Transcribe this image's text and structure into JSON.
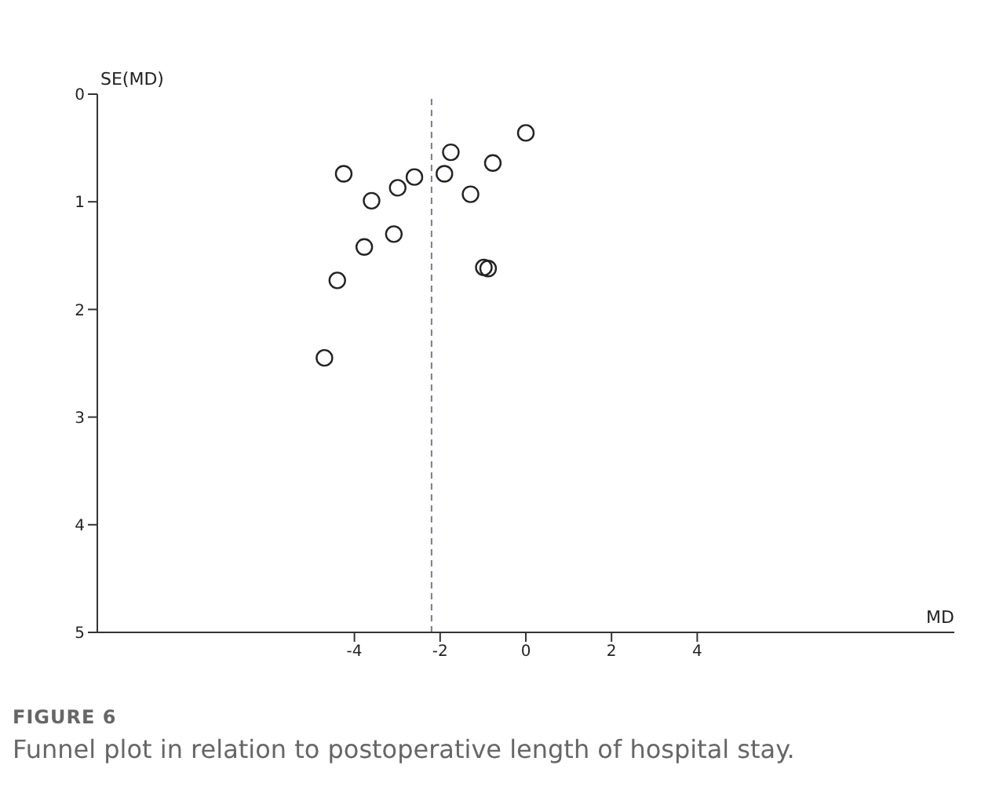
{
  "chart_data": {
    "type": "scatter",
    "xlabel": "MD",
    "ylabel": "SE(MD)",
    "annotations": [
      "FIGURE 6",
      "Funnel plot in relation to postoperative length of hospital stay."
    ],
    "x": [
      -4.25,
      -3.6,
      -2.99,
      -2.6,
      -1.75,
      -1.9,
      -0.77,
      0.0,
      -1.29,
      -3.08,
      -3.77,
      -4.4,
      -4.7,
      -0.98,
      -0.88
    ],
    "series": [
      {
        "color": "#222222",
        "values": [
          0.74,
          0.99,
          0.87,
          0.77,
          0.54,
          0.74,
          0.64,
          0.36,
          0.93,
          1.3,
          1.42,
          1.73,
          2.45,
          1.61,
          1.62
        ]
      }
    ],
    "xlim": [
      -10,
      10
    ],
    "xticks": [
      -4,
      -2,
      0,
      2,
      4
    ],
    "ylim": [
      5,
      0
    ],
    "yticks": [
      0,
      1,
      2,
      3,
      4,
      5
    ],
    "ref_lines": [
      {
        "axis": "x",
        "value": -2.2,
        "color": "#7a7a90",
        "line_style": "dashed"
      }
    ],
    "marker": "circle",
    "grid": false
  }
}
